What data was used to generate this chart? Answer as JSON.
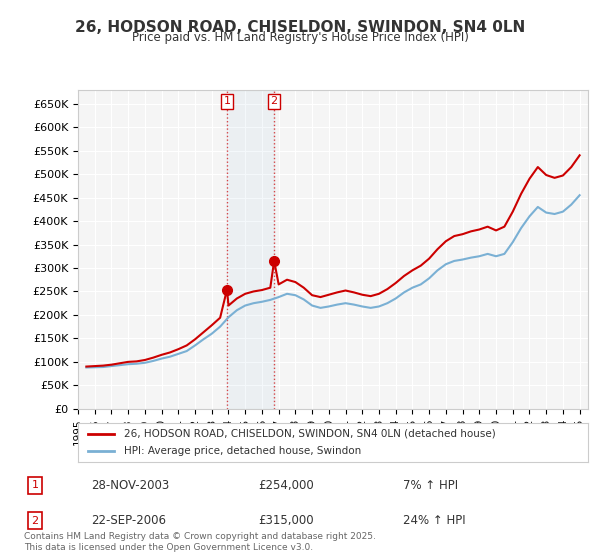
{
  "title": "26, HODSON ROAD, CHISELDON, SWINDON, SN4 0LN",
  "subtitle": "Price paid vs. HM Land Registry's House Price Index (HPI)",
  "xlabel": "",
  "ylabel": "",
  "ylim": [
    0,
    680000
  ],
  "yticks": [
    0,
    50000,
    100000,
    150000,
    200000,
    250000,
    300000,
    350000,
    400000,
    450000,
    500000,
    550000,
    600000,
    650000
  ],
  "ytick_labels": [
    "£0",
    "£50K",
    "£100K",
    "£150K",
    "£200K",
    "£250K",
    "£300K",
    "£350K",
    "£400K",
    "£450K",
    "£500K",
    "£550K",
    "£600K",
    "£650K"
  ],
  "bg_color": "#f5f5f5",
  "grid_color": "#ffffff",
  "house_color": "#cc0000",
  "hpi_color": "#7ab0d4",
  "transaction1": {
    "date": "2003-11-28",
    "x": 2003.91,
    "price": 254000,
    "label": "1",
    "hpi_diff": "7% ↑ HPI"
  },
  "transaction2": {
    "date": "2006-09-22",
    "x": 2006.73,
    "price": 315000,
    "label": "2",
    "hpi_diff": "24% ↑ HPI"
  },
  "legend_house": "26, HODSON ROAD, CHISELDON, SWINDON, SN4 0LN (detached house)",
  "legend_hpi": "HPI: Average price, detached house, Swindon",
  "footer": "Contains HM Land Registry data © Crown copyright and database right 2025.\nThis data is licensed under the Open Government Licence v3.0.",
  "table_rows": [
    {
      "num": "1",
      "date": "28-NOV-2003",
      "price": "£254,000",
      "hpi": "7% ↑ HPI"
    },
    {
      "num": "2",
      "date": "22-SEP-2006",
      "price": "£315,000",
      "hpi": "24% ↑ HPI"
    }
  ]
}
